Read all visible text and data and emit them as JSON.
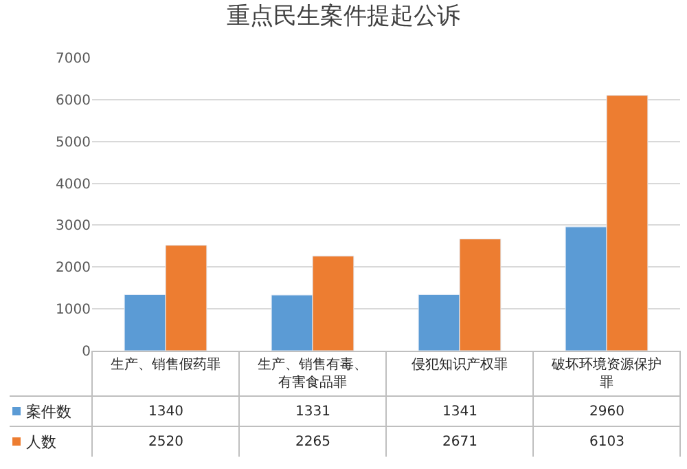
{
  "chart_data": {
    "type": "bar",
    "title": "重点民生案件提起公诉",
    "categories": [
      "生产、销售假药罪",
      "生产、销售有毒、有害食品罪",
      "侵犯知识产权罪",
      "破坏环境资源保护罪"
    ],
    "series": [
      {
        "name": "案件数",
        "color": "#5b9bd5",
        "values": [
          1340,
          1331,
          1341,
          2960
        ]
      },
      {
        "name": "人数",
        "color": "#ed7d31",
        "values": [
          2520,
          2265,
          2671,
          6103
        ]
      }
    ],
    "ylim": [
      0,
      7000
    ],
    "yticks": [
      0,
      1000,
      2000,
      3000,
      4000,
      5000,
      6000,
      7000
    ],
    "grid": "y",
    "legend": "bottom left",
    "data_labels": true
  }
}
